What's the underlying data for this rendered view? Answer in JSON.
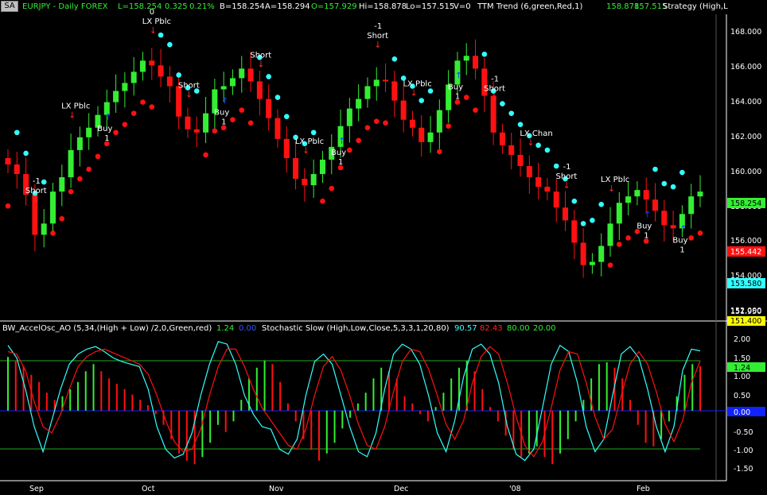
{
  "header": {
    "button": "SA",
    "symbol": "EURJPY - Daily  FOREX",
    "last": "L=158.254",
    "change": "0.325",
    "change_pct": "0.21%",
    "bid": "B=158.254",
    "ask": "A=158.294",
    "open": "O=157.929",
    "high": "Hi=158.878",
    "low": "Lo=157.515",
    "volume": "V=0",
    "study_ttm": "TTM Trend (6,green,Red,1)",
    "study_ttm_v1": "158.878",
    "study_ttm_v2": "157.515",
    "study_strategy": "Strategy (High,L"
  },
  "indicator_header": {
    "ao_name": "BW_AccelOsc_AO (5,34,(High + Low) /2,0,Green,red)",
    "ao_value": "1.24",
    "ao_zero": "0.00",
    "stoch_name": "Stochastic Slow (High,Low,Close,5,3,3,1,20,80)",
    "stoch_k": "90.57",
    "stoch_d": "82.43",
    "stoch_ob": "80.00",
    "stoch_os": "20.00"
  },
  "colors": {
    "up": "#33ee33",
    "down": "#ff1111",
    "cyan": "#33ffff",
    "yellow": "#ffff00",
    "white": "#ffffff",
    "blue_arrow": "#1144ff",
    "red_arrow": "#ff2222"
  },
  "chart_data": [
    {
      "type": "candlestick",
      "title": "EURJPY - Daily  FOREX",
      "x_labels": [
        "Sep",
        "Oct",
        "Nov",
        "Dec",
        "'08",
        "Feb"
      ],
      "y_ticks": [
        "168.000",
        "166.000",
        "164.000",
        "162.000",
        "160.000",
        "158.000",
        "156.000",
        "154.000",
        "152.000"
      ],
      "ylim": [
        150.3,
        169.3
      ],
      "price_boxes": [
        "158.254",
        "155.442",
        "153.580",
        "151.950",
        "151.400"
      ],
      "grid": false,
      "close": [
        160.0,
        159.4,
        158.1,
        155.6,
        156.3,
        158.3,
        159.2,
        160.9,
        161.7,
        162.3,
        163.1,
        163.9,
        164.6,
        165.1,
        165.8,
        166.5,
        166.2,
        165.5,
        164.9,
        163.0,
        162.2,
        162.0,
        163.2,
        164.7,
        164.9,
        165.4,
        166.0,
        165.2,
        164.1,
        162.9,
        161.6,
        160.4,
        159.1,
        158.7,
        159.4,
        160.3,
        161.1,
        162.4,
        163.5,
        164.1,
        164.9,
        165.3,
        165.2,
        164.0,
        162.8,
        162.3,
        161.4,
        162.0,
        163.4,
        165.0,
        166.5,
        166.8,
        166.0,
        164.3,
        162.0,
        161.2,
        160.6,
        159.9,
        159.2,
        158.6,
        158.3,
        157.3,
        156.5,
        155.1,
        153.7,
        153.9,
        154.9,
        156.3,
        157.6,
        158.0,
        158.4,
        157.8,
        157.1,
        156.2,
        156.0,
        156.9,
        158.0,
        158.3
      ],
      "signals": [
        {
          "label": "Short",
          "qty": "-1"
        },
        {
          "label": "LX Pblc"
        },
        {
          "label": "Buy",
          "qty": "1"
        },
        {
          "label": "LX Pblc",
          "qty": "0"
        },
        {
          "label": "Short"
        },
        {
          "label": "Buy",
          "qty": "1"
        },
        {
          "label": "Short"
        },
        {
          "label": "LX Pblc"
        },
        {
          "label": "Buy",
          "qty": "1"
        },
        {
          "label": "Short",
          "qty": "-1"
        },
        {
          "label": "LX Pblc"
        },
        {
          "label": "Buy",
          "qty": "1"
        },
        {
          "label": "Short",
          "qty": "-1"
        },
        {
          "label": "LX Chan"
        },
        {
          "label": "Short",
          "qty": "-1"
        },
        {
          "label": "LX Pblc"
        },
        {
          "label": "Buy",
          "qty": "1"
        },
        {
          "label": "Buy",
          "qty": "1"
        }
      ]
    },
    {
      "type": "bar",
      "title": "BW_AccelOsc_AO (5,34,(High + Low) /2,0,Green,red)",
      "y_ticks": [
        "2.00",
        "1.50",
        "1.00",
        "0.50",
        "0.00",
        "-0.50",
        "-1.00",
        "-1.50"
      ],
      "ylim": [
        -1.85,
        2.15
      ],
      "value_boxes": [
        "1.50",
        "1.24",
        "0.00"
      ],
      "ao_values": [
        1.5,
        1.4,
        1.25,
        1.0,
        0.8,
        0.5,
        0.3,
        0.4,
        0.6,
        0.8,
        1.1,
        1.3,
        1.1,
        0.9,
        0.75,
        0.6,
        0.45,
        0.3,
        0.15,
        -0.1,
        -0.4,
        -0.8,
        -1.2,
        -1.4,
        -1.5,
        -1.3,
        -0.9,
        -0.4,
        -0.6,
        -0.3,
        0.3,
        0.9,
        1.2,
        1.4,
        1.3,
        0.8,
        0.2,
        -0.3,
        -0.8,
        -1.1,
        -1.4,
        -1.2,
        -0.9,
        -0.5,
        -0.2,
        0.2,
        0.5,
        0.9,
        1.2,
        1.1,
        0.9,
        0.4,
        0.2,
        -0.1,
        -0.3,
        0.1,
        0.5,
        0.9,
        1.2,
        1.4,
        1.1,
        0.6,
        0.1,
        -0.3,
        -0.7,
        -1.1,
        -1.3,
        -1.2,
        -1.0,
        -1.3,
        -1.5,
        -1.2,
        -0.8,
        -0.3,
        0.3,
        0.9,
        1.3,
        1.35,
        1.2,
        0.9,
        0.3,
        -0.4,
        -0.9,
        -1.0,
        -0.8,
        -0.3,
        0.4,
        1.0,
        1.3,
        1.24
      ],
      "stoch_k": [
        95,
        85,
        60,
        30,
        10,
        35,
        60,
        80,
        88,
        92,
        94,
        90,
        85,
        82,
        80,
        78,
        60,
        30,
        12,
        5,
        8,
        25,
        55,
        80,
        98,
        96,
        80,
        55,
        40,
        30,
        28,
        12,
        8,
        20,
        55,
        82,
        88,
        80,
        55,
        30,
        10,
        6,
        25,
        60,
        88,
        96,
        92,
        80,
        55,
        25,
        10,
        35,
        70,
        92,
        96,
        88,
        65,
        30,
        8,
        3,
        12,
        45,
        80,
        95,
        90,
        65,
        30,
        10,
        20,
        55,
        88,
        94,
        85,
        60,
        30,
        10,
        30,
        75,
        92,
        90.57
      ],
      "stoch_d": [
        90,
        88,
        75,
        50,
        30,
        25,
        40,
        60,
        78,
        86,
        90,
        92,
        89,
        86,
        83,
        80,
        72,
        55,
        35,
        18,
        10,
        12,
        28,
        55,
        78,
        92,
        92,
        78,
        60,
        45,
        35,
        25,
        15,
        12,
        28,
        55,
        78,
        86,
        75,
        55,
        32,
        15,
        12,
        30,
        58,
        82,
        92,
        90,
        76,
        55,
        32,
        20,
        35,
        65,
        86,
        94,
        88,
        65,
        38,
        15,
        6,
        18,
        45,
        75,
        90,
        88,
        65,
        38,
        20,
        28,
        55,
        80,
        90,
        80,
        58,
        32,
        18,
        35,
        65,
        82.43
      ],
      "stoch_levels": [
        80,
        20
      ]
    }
  ]
}
